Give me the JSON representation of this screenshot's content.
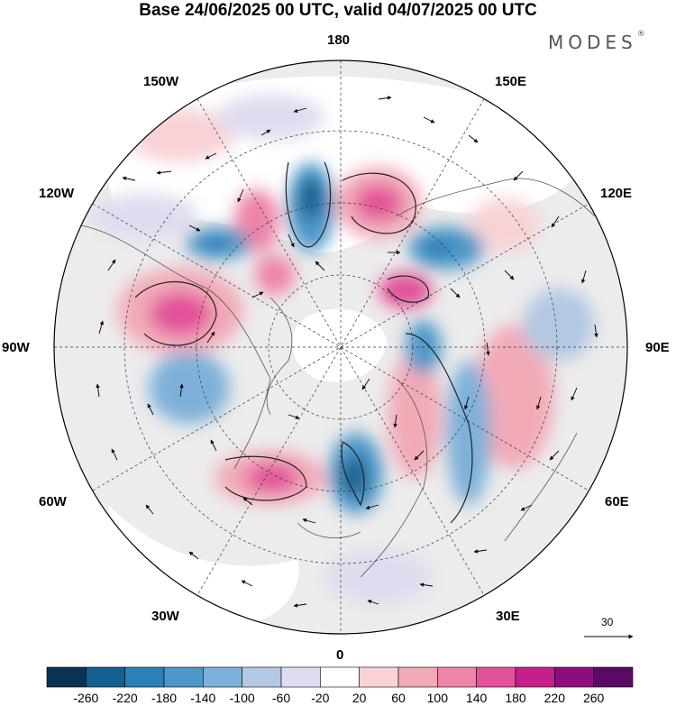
{
  "title": "Base 24/06/2025 00 UTC, valid 04/07/2025 00 UTC",
  "logo": "MODES",
  "logo_mark": "®",
  "longitude_labels": {
    "lon_180": "180",
    "lon_150w": "150W",
    "lon_150e": "150E",
    "lon_120w": "120W",
    "lon_120e": "120E",
    "lon_90w": "90W",
    "lon_90e": "90E",
    "lon_60w": "60W",
    "lon_60e": "60E",
    "lon_30w": "30W",
    "lon_30e": "30E",
    "lon_0": "0"
  },
  "reference_vector": {
    "value": "30"
  },
  "colorbar": {
    "levels": [
      "-260",
      "-220",
      "-180",
      "-140",
      "-100",
      "-60",
      "-20",
      "20",
      "60",
      "100",
      "140",
      "180",
      "220",
      "260"
    ],
    "colors": [
      "#0b3454",
      "#135f8f",
      "#2c7fb8",
      "#4e98c9",
      "#7eb1d9",
      "#b3c8e3",
      "#dedcef",
      "#ffffff",
      "#f8d3d6",
      "#f2aab7",
      "#ee84a8",
      "#e2519a",
      "#c41f8a",
      "#8e0d7e",
      "#5a0a66"
    ]
  }
}
